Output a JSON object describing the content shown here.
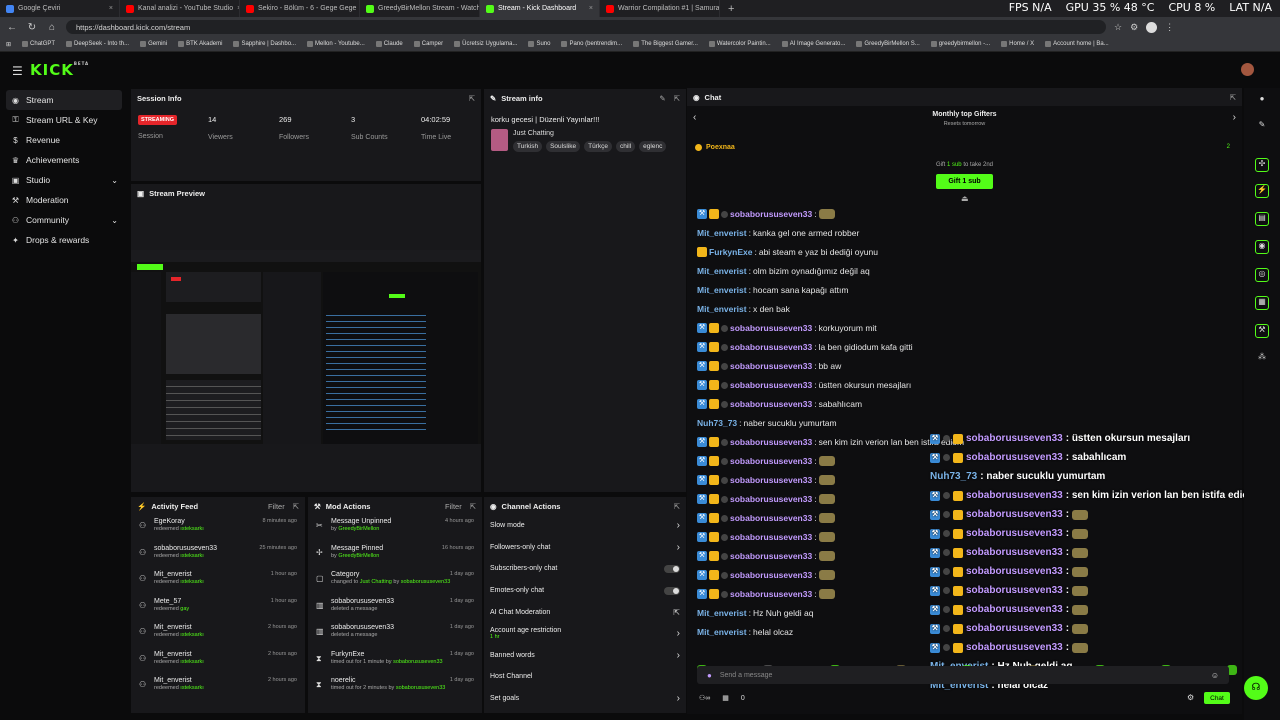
{
  "browser": {
    "tabs": [
      {
        "label": "Google Çeviri",
        "color": "#4285f4",
        "active": false
      },
      {
        "label": "Kanal analizi - YouTube Studio",
        "color": "#ff0000",
        "active": false
      },
      {
        "label": "Sekiro - Bölüm - 6 - Gege Gege ·",
        "color": "#ff0000",
        "active": false
      },
      {
        "label": "GreedyBirMellon Stream - Watch",
        "color": "#53fc18",
        "active": false
      },
      {
        "label": "Stream - Kick Dashboard",
        "color": "#53fc18",
        "active": true
      },
      {
        "label": "Warrior Compilation #1 | Samurai",
        "color": "#ff0000",
        "active": false
      }
    ],
    "perf": {
      "fps": "FPS N/A",
      "gpu": "GPU 35 % 48 °C",
      "cpu": "CPU 8 %",
      "lat": "LAT N/A"
    },
    "url": "https://dashboard.kick.com/stream",
    "bookmarks": [
      "ChatGPT",
      "DeepSeek - Into th...",
      "Gemini",
      "BTK Akademi",
      "Sapphire | Dashbo...",
      "Mellon - Youtube...",
      "Claude",
      "Camper",
      "Ücretsiz Uygulama...",
      "Suno",
      "Pano (bentrendim...",
      "The Biggest Gamer...",
      "Watercolor Paintin...",
      "AI Image Generato...",
      "GreedyBirMellon S...",
      "greedybirmellon -...",
      "Home / X",
      "Account home | Ba..."
    ]
  },
  "app": {
    "logo": "KICK",
    "logo_sup": "BETA"
  },
  "sidebar": {
    "items": [
      {
        "label": "Stream",
        "icon": "broadcast-icon"
      },
      {
        "label": "Stream URL & Key",
        "icon": "key-icon"
      },
      {
        "label": "Revenue",
        "icon": "money-icon"
      },
      {
        "label": "Achievements",
        "icon": "trophy-icon"
      },
      {
        "label": "Studio",
        "icon": "studio-icon"
      },
      {
        "label": "Moderation",
        "icon": "wrench-icon"
      },
      {
        "label": "Community",
        "icon": "people-icon"
      },
      {
        "label": "Drops & rewards",
        "icon": "gift-icon"
      }
    ]
  },
  "session": {
    "title": "Session Info",
    "badge": "STREAMING",
    "badge_label": "Session",
    "viewers": "14",
    "viewers_label": "Viewers",
    "followers": "269",
    "followers_label": "Followers",
    "subs": "3",
    "subs_label": "Sub Counts",
    "time": "04:02:59",
    "time_label": "Time Live"
  },
  "preview": {
    "title": "Stream Preview"
  },
  "stream_info": {
    "title": "Stream info",
    "stream_title": "korku gecesi | Düzenli Yayınlar!!!",
    "category": "Just Chatting",
    "tags": [
      "Turkish",
      "Soulslike",
      "Türkçe",
      "chill",
      "eglenc"
    ]
  },
  "chat": {
    "title": "Chat",
    "gifters_title": "Monthly top Gifters",
    "gifters_sub": "Resets tomorrow",
    "top_gifter": "Poexnaa",
    "top_gifter_count": "2",
    "gift_hint_pre": "Gift",
    "gift_hint_num": "1 sub",
    "gift_hint_post": "to take 2nd",
    "gift_button": "Gift 1 sub",
    "input_placeholder": "Send a message",
    "viewers_count": "0",
    "chat_button": "Chat",
    "messages": [
      {
        "user": "sobaborususeven33",
        "text": "",
        "badges": true,
        "emote": true
      },
      {
        "user": "Mit_enverist",
        "text": "kanka gel one armed robber",
        "badges": false,
        "emote": false
      },
      {
        "user": "FurkynExe",
        "text": "abi steam e yaz bi dediği oyunu",
        "badges": false,
        "crown": true,
        "emote": false
      },
      {
        "user": "Mit_enverist",
        "text": "olm bizim oynadığımız değil aq",
        "badges": false,
        "emote": false
      },
      {
        "user": "Mit_enverist",
        "text": "hocam sana kapağı attım",
        "badges": false,
        "emote": false
      },
      {
        "user": "Mit_enverist",
        "text": "x den bak",
        "badges": false,
        "emote": false
      },
      {
        "user": "sobaborususeven33",
        "text": "korkuyorum mit",
        "badges": true,
        "emote": false
      },
      {
        "user": "sobaborususeven33",
        "text": "la ben gidiodum kafa gitti",
        "badges": true,
        "emote": false
      },
      {
        "user": "sobaborususeven33",
        "text": "bb aw",
        "badges": true,
        "emote": false
      },
      {
        "user": "sobaborususeven33",
        "text": "üstten okursun mesajları",
        "badges": true,
        "emote": false
      },
      {
        "user": "sobaborususeven33",
        "text": "sabahlıcam",
        "badges": true,
        "emote": false
      },
      {
        "user": "Nuh73_73",
        "text": "naber sucuklu yumurtam",
        "badges": false,
        "emote": false
      },
      {
        "user": "sobaborususeven33",
        "text": "sen kim izin verion lan ben istifa ediom",
        "badges": true,
        "emote": false
      },
      {
        "user": "sobaborususeven33",
        "text": "",
        "badges": true,
        "emote": true
      },
      {
        "user": "sobaborususeven33",
        "text": "",
        "badges": true,
        "emote": true
      },
      {
        "user": "sobaborususeven33",
        "text": "",
        "badges": true,
        "emote": true
      },
      {
        "user": "sobaborususeven33",
        "text": "",
        "badges": true,
        "emote": true
      },
      {
        "user": "sobaborususeven33",
        "text": "",
        "badges": true,
        "emote": true
      },
      {
        "user": "sobaborususeven33",
        "text": "",
        "badges": true,
        "emote": true
      },
      {
        "user": "sobaborususeven33",
        "text": "",
        "badges": true,
        "emote": true
      },
      {
        "user": "sobaborususeven33",
        "text": "",
        "badges": true,
        "emote": true
      },
      {
        "user": "Mit_enverist",
        "text": "Hz Nuh geldi aq",
        "badges": false,
        "emote": false
      },
      {
        "user": "Mit_enverist",
        "text": "helal olcaz",
        "badges": false,
        "emote": false
      }
    ]
  },
  "overlay_chat": [
    {
      "user": "sobaborususeven33",
      "text": " : üstten okursun mesajları",
      "badges": true,
      "emote": false
    },
    {
      "user": "sobaborususeven33",
      "text": " : sabahlıcam",
      "badges": true,
      "emote": false
    },
    {
      "user": "Nuh73_73",
      "text": " : naber sucuklu yumurtam",
      "badges": false,
      "emote": false
    },
    {
      "user": "sobaborususeven33",
      "text": " : sen kim izin verion lan ben istifa ediom",
      "badges": true,
      "emote": false
    },
    {
      "user": "sobaborususeven33",
      "text": " :",
      "badges": true,
      "emote": true
    },
    {
      "user": "sobaborususeven33",
      "text": " :",
      "badges": true,
      "emote": true
    },
    {
      "user": "sobaborususeven33",
      "text": " :",
      "badges": true,
      "emote": true
    },
    {
      "user": "sobaborususeven33",
      "text": " :",
      "badges": true,
      "emote": true
    },
    {
      "user": "sobaborususeven33",
      "text": " :",
      "badges": true,
      "emote": true
    },
    {
      "user": "sobaborususeven33",
      "text": " :",
      "badges": true,
      "emote": true
    },
    {
      "user": "sobaborususeven33",
      "text": " :",
      "badges": true,
      "emote": true
    },
    {
      "user": "sobaborususeven33",
      "text": " :",
      "badges": true,
      "emote": true
    },
    {
      "user": "Mit_enverist",
      "text": " : Hz Nuh geldi aq",
      "badges": false,
      "emote": false
    },
    {
      "user": "Mit_enverist",
      "text": " : helal olcaz",
      "badges": false,
      "emote": false
    }
  ],
  "activity": {
    "title": "Activity Feed",
    "filter": "Filter",
    "items": [
      {
        "name": "EgeKoray",
        "action": "redeemed",
        "reward": "ısteksarkı",
        "time": "8 minutes ago"
      },
      {
        "name": "sobaborususeven33",
        "action": "redeemed",
        "reward": "ısteksarkı",
        "time": "25 minutes ago"
      },
      {
        "name": "Mit_enverist",
        "action": "redeemed",
        "reward": "ısteksarkı",
        "time": "1 hour ago"
      },
      {
        "name": "Mete_57",
        "action": "redeemed",
        "reward": "gay",
        "time": "1 hour ago"
      },
      {
        "name": "Mit_enverist",
        "action": "redeemed",
        "reward": "ısteksarkı",
        "time": "2 hours ago"
      },
      {
        "name": "Mit_enverist",
        "action": "redeemed",
        "reward": "ısteksarkı",
        "time": "2 hours ago"
      },
      {
        "name": "Mit_enverist",
        "action": "redeemed",
        "reward": "ısteksarkı",
        "time": "2 hours ago"
      }
    ]
  },
  "mod_actions": {
    "title": "Mod Actions",
    "filter": "Filter",
    "items": [
      {
        "name": "Message Unpinned",
        "pre": "by",
        "hl": "GreedyBirMellon",
        "mid": "",
        "hl2": "",
        "time": "4 hours ago",
        "icon": "unpin-icon"
      },
      {
        "name": "Message Pinned",
        "pre": "by",
        "hl": "GreedyBirMellon",
        "mid": "",
        "hl2": "",
        "time": "16 hours ago",
        "icon": "pin-icon"
      },
      {
        "name": "Category",
        "pre": "changed to",
        "hl": "Just Chatting",
        "mid": "by",
        "hl2": "sobaborususeven33",
        "time": "1 day ago",
        "icon": "category-icon"
      },
      {
        "name": "sobaborususeven33",
        "pre": "deleted a message",
        "hl": "",
        "mid": "",
        "hl2": "",
        "time": "1 day ago",
        "icon": "trash-icon"
      },
      {
        "name": "sobaborususeven33",
        "pre": "deleted a message",
        "hl": "",
        "mid": "",
        "hl2": "",
        "time": "1 day ago",
        "icon": "trash-icon"
      },
      {
        "name": "FurkynExe",
        "pre": "timed out for 1 minute by",
        "hl": "sobaborususeven33",
        "mid": "",
        "hl2": "",
        "time": "1 day ago",
        "icon": "hourglass-icon"
      },
      {
        "name": "noerelic",
        "pre": "timed out for 2 minutes by",
        "hl": "sobaborususeven33",
        "mid": "",
        "hl2": "",
        "time": "1 day ago",
        "icon": "hourglass-icon"
      }
    ]
  },
  "channel_actions": {
    "title": "Channel Actions",
    "items": [
      {
        "label": "Slow mode",
        "kind": "arrow",
        "sub": ""
      },
      {
        "label": "Followers-only chat",
        "kind": "arrow",
        "sub": ""
      },
      {
        "label": "Subscribers-only chat",
        "kind": "toggle",
        "sub": ""
      },
      {
        "label": "Emotes-only chat",
        "kind": "toggle",
        "sub": ""
      },
      {
        "label": "AI Chat Moderation",
        "kind": "ext",
        "sub": ""
      },
      {
        "label": "Account age restriction",
        "kind": "arrow",
        "sub": "1 hr"
      },
      {
        "label": "Banned words",
        "kind": "arrow",
        "sub": ""
      },
      {
        "label": "Host Channel",
        "kind": "none",
        "sub": ""
      },
      {
        "label": "Set goals",
        "kind": "arrow",
        "sub": ""
      }
    ]
  },
  "colors": {
    "accent": "#53fc18",
    "live": "#e5252a",
    "panel": "#18181b"
  }
}
